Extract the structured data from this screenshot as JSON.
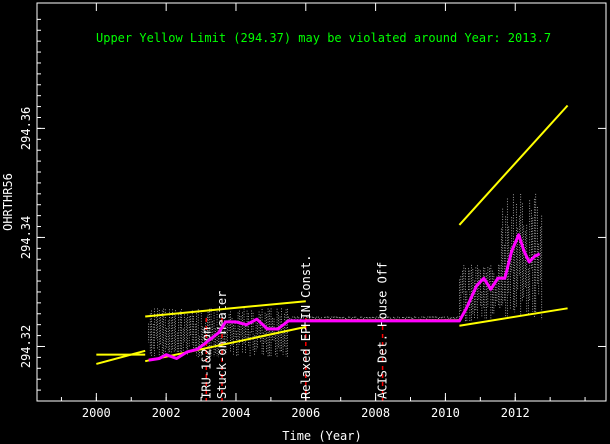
{
  "chart_data": {
    "type": "scatter",
    "headline": "Upper Yellow  Limit (294.37) may be violated around Year: 2013.7",
    "xlabel": "Time (Year)",
    "ylabel": "OHRTHR56",
    "xlim": [
      1998.3,
      2014.6
    ],
    "ylim": [
      294.31,
      294.383
    ],
    "x_ticks": [
      2000,
      2002,
      2004,
      2006,
      2008,
      2010,
      2012
    ],
    "y_ticks": [
      294.32,
      294.34,
      294.36
    ],
    "x_tick_labels": [
      "2000",
      "2002",
      "2004",
      "2006",
      "2008",
      "2010",
      "2012"
    ],
    "y_tick_labels": [
      "294.32",
      "294.34",
      "294.36"
    ],
    "colors": {
      "background": "#000000",
      "frame": "#ffffff",
      "data_points": "#ffffff",
      "moving_average": "#ff00ff",
      "trend_lines": "#ffff00",
      "event_markers": "#ff0000",
      "headline": "#00ff00"
    },
    "events": [
      {
        "x": 2003.15,
        "label": "IRU-1&2 on"
      },
      {
        "x": 2003.6,
        "label": "Stuck-on Heater"
      },
      {
        "x": 2006.0,
        "label": "Relaxed EPHIN Const."
      },
      {
        "x": 2008.2,
        "label": "ACIS Det. House Off"
      }
    ],
    "data_bands": [
      {
        "x_start": 2001.5,
        "x_end": 2003.2,
        "y_low": 294.318,
        "y_high": 294.327
      },
      {
        "x_start": 2003.2,
        "x_end": 2005.5,
        "y_low": 294.318,
        "y_high": 294.327
      },
      {
        "x_start": 2005.5,
        "x_end": 2010.4,
        "y_low": 294.3245,
        "y_high": 294.3255
      },
      {
        "x_start": 2010.4,
        "x_end": 2011.6,
        "y_low": 294.3245,
        "y_high": 294.335
      },
      {
        "x_start": 2011.6,
        "x_end": 2012.8,
        "y_low": 294.3245,
        "y_high": 294.348
      }
    ],
    "moving_average": {
      "x": [
        2001.5,
        2001.8,
        2002.0,
        2002.3,
        2002.6,
        2002.9,
        2003.2,
        2003.5,
        2003.7,
        2004.0,
        2004.3,
        2004.6,
        2004.9,
        2005.2,
        2005.5,
        2005.8,
        2006.2,
        2007.0,
        2008.0,
        2009.0,
        2010.0,
        2010.4,
        2010.6,
        2010.9,
        2011.1,
        2011.3,
        2011.5,
        2011.7,
        2011.9,
        2012.1,
        2012.25,
        2012.4,
        2012.55,
        2012.7
      ],
      "y": [
        294.3175,
        294.3178,
        294.3185,
        294.3178,
        294.319,
        294.3195,
        294.321,
        294.3225,
        294.3245,
        294.3245,
        294.324,
        294.325,
        294.3232,
        294.3232,
        294.3247,
        294.3247,
        294.3247,
        294.3247,
        294.3247,
        294.3247,
        294.3247,
        294.3247,
        294.327,
        294.3312,
        294.3325,
        294.3305,
        294.3325,
        294.3325,
        294.3375,
        294.3405,
        294.3375,
        294.3355,
        294.3365,
        294.337
      ]
    },
    "trend_lines": [
      {
        "x": [
          2000.0,
          2001.4
        ],
        "y": [
          294.3168,
          294.3192
        ]
      },
      {
        "x": [
          2000.0,
          2001.4
        ],
        "y": [
          294.3185,
          294.3185
        ]
      },
      {
        "x": [
          2001.4,
          2006.0
        ],
        "y": [
          294.3255,
          294.3283
        ]
      },
      {
        "x": [
          2001.4,
          2006.0
        ],
        "y": [
          294.3173,
          294.3236
        ]
      },
      {
        "x": [
          2006.0,
          2010.4
        ],
        "y": [
          294.3248,
          294.3248
        ]
      },
      {
        "x": [
          2010.4,
          2013.5
        ],
        "y": [
          294.3423,
          294.3642
        ]
      },
      {
        "x": [
          2010.4,
          2013.5
        ],
        "y": [
          294.3238,
          294.327
        ]
      }
    ]
  }
}
